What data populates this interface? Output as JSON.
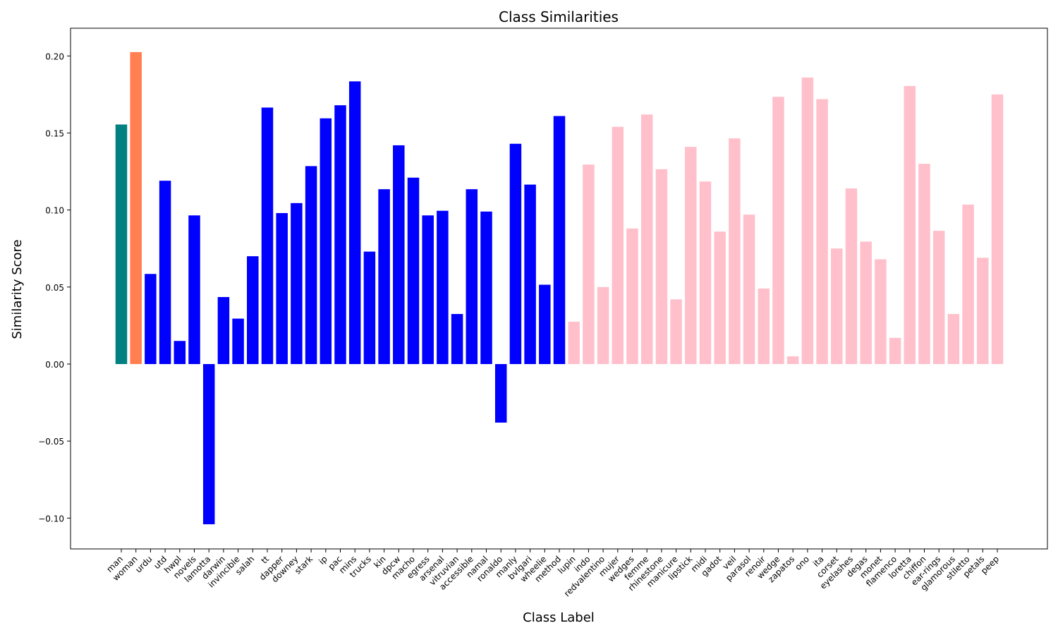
{
  "chart_data": {
    "type": "bar",
    "title": "Class Similarities",
    "xlabel": "Class Label",
    "ylabel": "Similarity Score",
    "ylim": [
      -0.12,
      0.218
    ],
    "yticks": [
      -0.1,
      -0.05,
      0.0,
      0.05,
      0.1,
      0.15,
      0.2
    ],
    "ytick_labels": [
      "−0.10",
      "−0.05",
      "0.00",
      "0.05",
      "0.10",
      "0.15",
      "0.20"
    ],
    "grid": false,
    "colors": {
      "man": "#008080",
      "woman": "#ff7f50",
      "male_terms": "#0000ff",
      "female_terms": "#ffc0cb"
    },
    "categories": [
      "man",
      "woman",
      "urdu",
      "utd",
      "hwpl",
      "novels",
      "lamotta",
      "darwin",
      "invincible",
      "salah",
      "tt",
      "dapper",
      "downey",
      "stark",
      "ip",
      "pac",
      "mins",
      "trucks",
      "kin",
      "dpcw",
      "macho",
      "egress",
      "arsenal",
      "vitruvian",
      "accessible",
      "namal",
      "ronaldo",
      "manly",
      "bvlgari",
      "wheelie",
      "method",
      "lupin",
      "indo",
      "redvalentino",
      "mujer",
      "wedges",
      "femme",
      "rhinestone",
      "manicure",
      "lipstick",
      "midi",
      "gadot",
      "veil",
      "parasol",
      "renoir",
      "wedge",
      "zapatos",
      "ono",
      "ita",
      "corset",
      "eyelashes",
      "degas",
      "monet",
      "flamenco",
      "loretta",
      "chiffon",
      "ear-rings",
      "glamorous",
      "stiletto",
      "petals",
      "peep"
    ],
    "values": [
      0.1555,
      0.2025,
      0.0585,
      0.119,
      0.015,
      0.0965,
      -0.104,
      0.0435,
      0.0295,
      0.07,
      0.1665,
      0.098,
      0.1045,
      0.1285,
      0.1595,
      0.168,
      0.1835,
      0.073,
      0.1135,
      0.142,
      0.121,
      0.0965,
      0.0995,
      0.0325,
      0.1135,
      0.099,
      -0.038,
      0.143,
      0.1165,
      0.0515,
      0.161,
      0.0275,
      0.1295,
      0.05,
      0.154,
      0.088,
      0.162,
      0.1265,
      0.042,
      0.141,
      0.1185,
      0.086,
      0.1465,
      0.097,
      0.049,
      0.1735,
      0.005,
      0.186,
      0.172,
      0.075,
      0.114,
      0.0795,
      0.068,
      0.017,
      0.1805,
      0.13,
      0.0865,
      0.0325,
      0.1035,
      0.069,
      0.175
    ],
    "bar_groups": [
      "man",
      "woman",
      "male_terms",
      "male_terms",
      "male_terms",
      "male_terms",
      "male_terms",
      "male_terms",
      "male_terms",
      "male_terms",
      "male_terms",
      "male_terms",
      "male_terms",
      "male_terms",
      "male_terms",
      "male_terms",
      "male_terms",
      "male_terms",
      "male_terms",
      "male_terms",
      "male_terms",
      "male_terms",
      "male_terms",
      "male_terms",
      "male_terms",
      "male_terms",
      "male_terms",
      "male_terms",
      "male_terms",
      "male_terms",
      "male_terms",
      "female_terms",
      "female_terms",
      "female_terms",
      "female_terms",
      "female_terms",
      "female_terms",
      "female_terms",
      "female_terms",
      "female_terms",
      "female_terms",
      "female_terms",
      "female_terms",
      "female_terms",
      "female_terms",
      "female_terms",
      "female_terms",
      "female_terms",
      "female_terms",
      "female_terms",
      "female_terms",
      "female_terms",
      "female_terms",
      "female_terms",
      "female_terms",
      "female_terms",
      "female_terms",
      "female_terms",
      "female_terms",
      "female_terms",
      "female_terms"
    ]
  }
}
